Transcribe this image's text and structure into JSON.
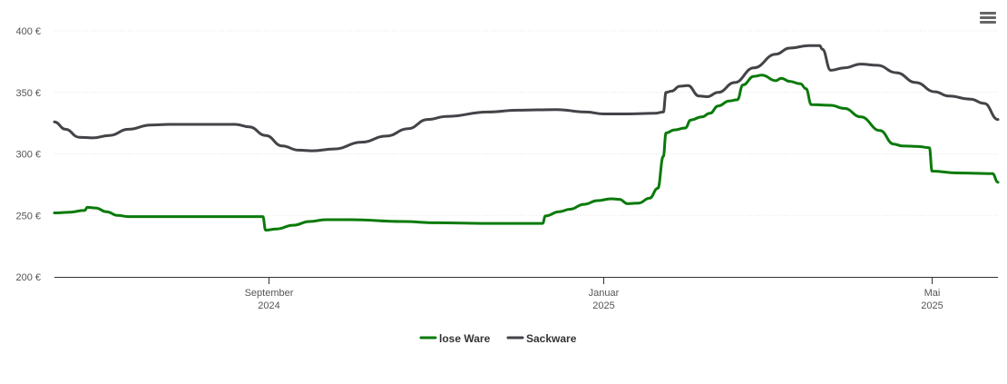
{
  "chart_data": {
    "type": "line",
    "title": "",
    "xlabel": "",
    "ylabel": "",
    "ylim": [
      200,
      400
    ],
    "y_ticks": [
      {
        "value": 400,
        "label": "400 €"
      },
      {
        "value": 350,
        "label": "350 €"
      },
      {
        "value": 300,
        "label": "300 €"
      },
      {
        "value": 250,
        "label": "250 €"
      },
      {
        "value": 200,
        "label": "200 €"
      }
    ],
    "x_range": [
      "2024-06-15",
      "2025-05-25"
    ],
    "x_ticks": [
      {
        "date": "2024-09-01",
        "line1": "September",
        "line2": "2024"
      },
      {
        "date": "2025-01-01",
        "line1": "Januar",
        "line2": "2025"
      },
      {
        "date": "2025-05-01",
        "line1": "Mai",
        "line2": "2025"
      }
    ],
    "grid": true,
    "legend_position": "bottom-center",
    "series": [
      {
        "name": "lose Ware",
        "color": "#0a7a0a",
        "points": [
          [
            "2024-06-15",
            252
          ],
          [
            "2024-06-20",
            252.5
          ],
          [
            "2024-06-26",
            254
          ],
          [
            "2024-06-27",
            256.5
          ],
          [
            "2024-06-30",
            256
          ],
          [
            "2024-07-04",
            253
          ],
          [
            "2024-07-08",
            250
          ],
          [
            "2024-07-12",
            249
          ],
          [
            "2024-08-01",
            249
          ],
          [
            "2024-08-15",
            249
          ],
          [
            "2024-08-25",
            249
          ],
          [
            "2024-08-30",
            249
          ],
          [
            "2024-08-31",
            238
          ],
          [
            "2024-09-04",
            239
          ],
          [
            "2024-09-10",
            242
          ],
          [
            "2024-09-16",
            245
          ],
          [
            "2024-09-22",
            246.5
          ],
          [
            "2024-10-01",
            246.5
          ],
          [
            "2024-10-20",
            245
          ],
          [
            "2024-11-01",
            244
          ],
          [
            "2024-11-20",
            243.5
          ],
          [
            "2024-12-01",
            243.5
          ],
          [
            "2024-12-10",
            243.5
          ],
          [
            "2024-12-11",
            249.5
          ],
          [
            "2024-12-16",
            253
          ],
          [
            "2024-12-20",
            255
          ],
          [
            "2024-12-25",
            259
          ],
          [
            "2024-12-30",
            262
          ],
          [
            "2025-01-04",
            263.5
          ],
          [
            "2025-01-07",
            263
          ],
          [
            "2025-01-10",
            259.5
          ],
          [
            "2025-01-14",
            260
          ],
          [
            "2025-01-18",
            264
          ],
          [
            "2025-01-21",
            272
          ],
          [
            "2025-01-23",
            298
          ],
          [
            "2025-01-24",
            317
          ],
          [
            "2025-01-27",
            319.5
          ],
          [
            "2025-01-31",
            321
          ],
          [
            "2025-02-02",
            327.5
          ],
          [
            "2025-02-06",
            330
          ],
          [
            "2025-02-09",
            333
          ],
          [
            "2025-02-12",
            339
          ],
          [
            "2025-02-16",
            343
          ],
          [
            "2025-02-19",
            344
          ],
          [
            "2025-02-21",
            356
          ],
          [
            "2025-02-25",
            363
          ],
          [
            "2025-02-28",
            364
          ],
          [
            "2025-03-05",
            359.5
          ],
          [
            "2025-03-07",
            361.5
          ],
          [
            "2025-03-10",
            359
          ],
          [
            "2025-03-14",
            357
          ],
          [
            "2025-03-16",
            353
          ],
          [
            "2025-03-18",
            340
          ],
          [
            "2025-03-25",
            339.5
          ],
          [
            "2025-03-30",
            337
          ],
          [
            "2025-04-05",
            330
          ],
          [
            "2025-04-12",
            319
          ],
          [
            "2025-04-17",
            308
          ],
          [
            "2025-04-20",
            306.5
          ],
          [
            "2025-04-26",
            306
          ],
          [
            "2025-04-30",
            305
          ],
          [
            "2025-04-31",
            286
          ],
          [
            "2025-05-10",
            284.5
          ],
          [
            "2025-05-23",
            284
          ],
          [
            "2025-05-25",
            277
          ]
        ]
      },
      {
        "name": "Sackware",
        "color": "#434348",
        "points": [
          [
            "2024-06-15",
            326
          ],
          [
            "2024-06-19",
            320
          ],
          [
            "2024-06-24",
            313.5
          ],
          [
            "2024-06-29",
            313
          ],
          [
            "2024-07-05",
            315
          ],
          [
            "2024-07-12",
            320
          ],
          [
            "2024-07-20",
            323.5
          ],
          [
            "2024-07-27",
            324
          ],
          [
            "2024-08-10",
            324
          ],
          [
            "2024-08-20",
            324
          ],
          [
            "2024-08-25",
            322
          ],
          [
            "2024-08-31",
            315
          ],
          [
            "2024-09-06",
            306.5
          ],
          [
            "2024-09-12",
            303
          ],
          [
            "2024-09-17",
            302.5
          ],
          [
            "2024-09-25",
            304
          ],
          [
            "2024-10-05",
            309.5
          ],
          [
            "2024-10-14",
            314.5
          ],
          [
            "2024-10-22",
            320.5
          ],
          [
            "2024-10-29",
            328
          ],
          [
            "2024-11-05",
            330.5
          ],
          [
            "2024-11-20",
            334
          ],
          [
            "2024-12-01",
            335.5
          ],
          [
            "2024-12-15",
            336
          ],
          [
            "2024-12-26",
            334
          ],
          [
            "2025-01-01",
            332.5
          ],
          [
            "2025-01-10",
            332.5
          ],
          [
            "2025-01-20",
            333
          ],
          [
            "2025-01-23",
            334
          ],
          [
            "2025-01-24",
            350
          ],
          [
            "2025-01-26",
            351
          ],
          [
            "2025-01-29",
            355
          ],
          [
            "2025-02-01",
            355.5
          ],
          [
            "2025-02-05",
            347
          ],
          [
            "2025-02-08",
            346.5
          ],
          [
            "2025-02-12",
            350
          ],
          [
            "2025-02-18",
            358
          ],
          [
            "2025-02-25",
            370
          ],
          [
            "2025-03-05",
            381
          ],
          [
            "2025-03-10",
            386
          ],
          [
            "2025-03-17",
            388
          ],
          [
            "2025-03-21",
            388
          ],
          [
            "2025-03-22",
            385
          ],
          [
            "2025-03-25",
            368
          ],
          [
            "2025-03-30",
            370
          ],
          [
            "2025-04-05",
            373
          ],
          [
            "2025-04-11",
            372
          ],
          [
            "2025-04-18",
            366
          ],
          [
            "2025-04-25",
            358
          ],
          [
            "2025-05-02",
            350.5
          ],
          [
            "2025-05-07",
            347
          ],
          [
            "2025-05-15",
            344.5
          ],
          [
            "2025-05-20",
            341
          ],
          [
            "2025-05-25",
            328
          ]
        ]
      }
    ]
  }
}
